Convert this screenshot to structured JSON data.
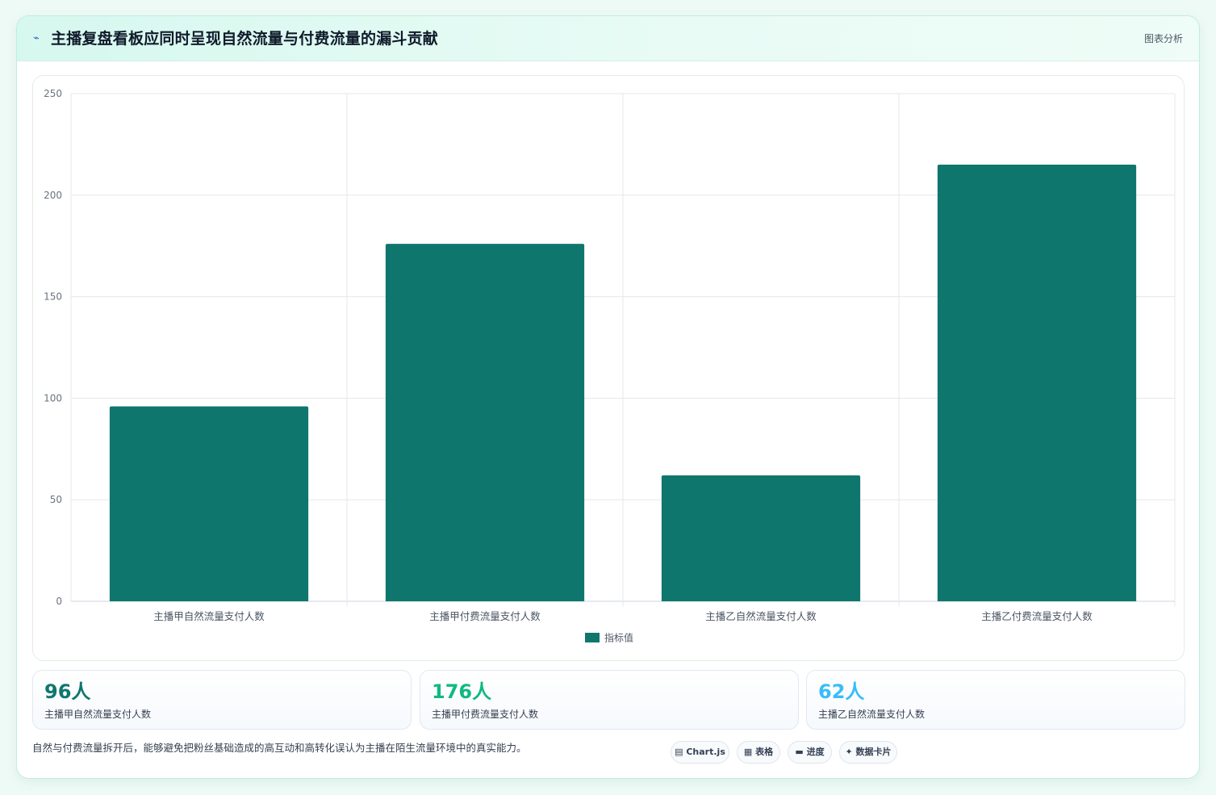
{
  "header": {
    "icon": "⌁",
    "title": "主播复盘看板应同时呈现自然流量与付费流量的漏斗贡献",
    "link": "图表分析"
  },
  "chart_data": {
    "type": "bar",
    "categories": [
      "主播甲自然流量支付人数",
      "主播甲付费流量支付人数",
      "主播乙自然流量支付人数",
      "主播乙付费流量支付人数"
    ],
    "series": [
      {
        "name": "指标值",
        "values": [
          96,
          176,
          62,
          215
        ],
        "color": "#0f766e"
      }
    ],
    "ylim": [
      0,
      250
    ],
    "yticks": [
      "0",
      "50",
      "100",
      "150",
      "200",
      "250"
    ],
    "grid": true,
    "legend": "bottom"
  },
  "stats": [
    {
      "value": "96人",
      "label": "主播甲自然流量支付人数",
      "color": "#0f766e"
    },
    {
      "value": "176人",
      "label": "主播甲付费流量支付人数",
      "color": "#10b981"
    },
    {
      "value": "62人",
      "label": "主播乙自然流量支付人数",
      "color": "#38bdf8"
    }
  ],
  "footnote": "自然与付费流量拆开后，能够避免把粉丝基础造成的高互动和高转化误认为主播在陌生流量环境中的真实能力。",
  "chips": [
    {
      "icon": "▤",
      "label": "Chart.js"
    },
    {
      "icon": "▦",
      "label": "表格"
    },
    {
      "icon": "▬",
      "label": "进度"
    },
    {
      "icon": "✦",
      "label": "数据卡片"
    }
  ]
}
